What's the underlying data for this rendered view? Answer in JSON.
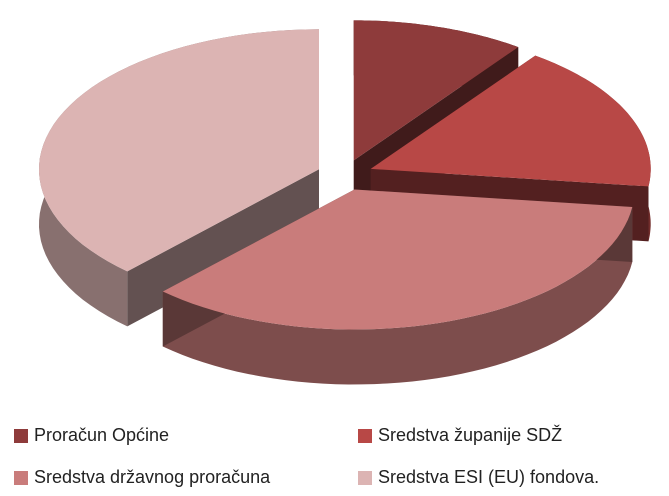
{
  "chart_data": {
    "type": "pie",
    "categories": [
      "Proračun Općine",
      "Sredstva županije SDŽ",
      "Sredstva državnog proračuna",
      "Sredstva  ESI (EU) fondova."
    ],
    "values": [
      10,
      17,
      35,
      38
    ],
    "colors": [
      "#8e3b3b",
      "#b84846",
      "#c97c7b",
      "#dcb4b3"
    ]
  }
}
